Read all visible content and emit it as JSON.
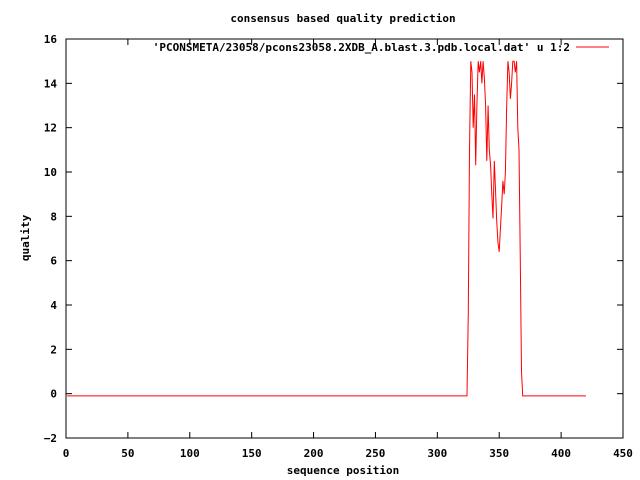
{
  "chart_data": {
    "type": "line",
    "title": "consensus based quality prediction",
    "xlabel": "sequence position",
    "ylabel": "quality",
    "xlim": [
      0,
      450
    ],
    "ylim": [
      -2,
      16
    ],
    "xticks": [
      0,
      50,
      100,
      150,
      200,
      250,
      300,
      350,
      400,
      450
    ],
    "yticks": [
      -2,
      0,
      2,
      4,
      6,
      8,
      10,
      12,
      14,
      16
    ],
    "grid": false,
    "legend_position": "top-right",
    "series": [
      {
        "name": "'PCONSMETA/23058/pcons23058.2XDB_A.blast.3.pdb.local.dat' u 1:2",
        "color": "#ff0000",
        "x": [
          1,
          324,
          325,
          326,
          327,
          328,
          329,
          330,
          331,
          332,
          333,
          334,
          335,
          336,
          337,
          338,
          339,
          340,
          341,
          342,
          343,
          344,
          345,
          346,
          347,
          348,
          349,
          350,
          351,
          352,
          353,
          354,
          355,
          356,
          357,
          358,
          359,
          360,
          361,
          362,
          363,
          364,
          365,
          366,
          367,
          368,
          369,
          370,
          371,
          372,
          373,
          374,
          375,
          420
        ],
        "y": [
          -0.1,
          -0.1,
          3.7,
          11.0,
          15.0,
          14.5,
          12.0,
          13.5,
          10.3,
          13.0,
          15.0,
          14.5,
          15.0,
          14.0,
          15.0,
          14.2,
          13.0,
          10.5,
          13.0,
          11.0,
          10.3,
          9.0,
          7.9,
          10.5,
          9.2,
          7.8,
          6.8,
          6.4,
          7.5,
          8.5,
          9.6,
          9.0,
          10.0,
          12.8,
          15.0,
          14.5,
          13.3,
          14.0,
          15.0,
          15.0,
          14.5,
          15.0,
          12.0,
          11.0,
          6.0,
          1.0,
          -0.1,
          -0.1,
          -0.1,
          -0.1,
          -0.1,
          -0.1,
          -0.1,
          -0.1
        ]
      }
    ]
  }
}
